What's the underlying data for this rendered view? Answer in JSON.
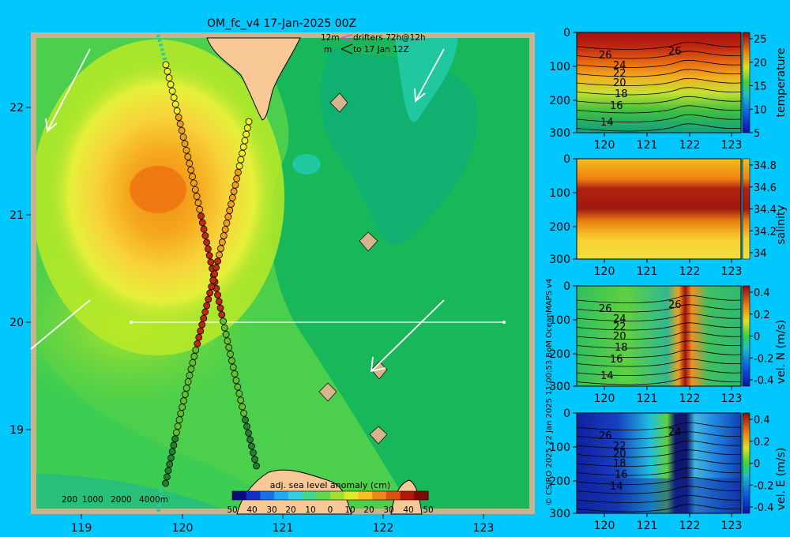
{
  "header": {
    "title": "OM_fc_v4  17-Jan-2025 00Z",
    "drifter_line1_left": "12m",
    "drifter_line1_right": "drifters 72h@12h",
    "drifter_line2_left": "m",
    "drifter_line2_right": "to 17 Jan 12Z"
  },
  "map": {
    "lon_ticks": [
      "119",
      "120",
      "121",
      "122",
      "123"
    ],
    "lat_ticks": [
      "22",
      "21",
      "20",
      "19"
    ],
    "depth_legend": [
      "200",
      "1000",
      "2000",
      "4000m"
    ],
    "colorbar_title": "adj. sea level anomaly (cm)",
    "colorbar_ticks": [
      "50",
      "40",
      "30",
      "20",
      "10",
      "0",
      "10",
      "20",
      "30",
      "40",
      "50"
    ]
  },
  "credit": "© CSIRO 2025   22 Jan 2025 11:00:53 BoM OceanMAPS v4",
  "panels": [
    {
      "label": "temperature",
      "y_ticks": [
        "0",
        "100",
        "200",
        "300"
      ],
      "x_ticks": [
        "120",
        "121",
        "122",
        "123"
      ],
      "cbar_ticks": [
        "25",
        "20",
        "15",
        "10",
        "5"
      ],
      "contour_labels": [
        "26",
        "26",
        "24",
        "22",
        "20",
        "18",
        "16",
        "14"
      ]
    },
    {
      "label": "salinity",
      "y_ticks": [
        "0",
        "100",
        "200",
        "300"
      ],
      "x_ticks": [
        "120",
        "121",
        "122",
        "123"
      ],
      "cbar_ticks": [
        "34.8",
        "34.6",
        "34.4",
        "34.2",
        "34"
      ],
      "contour_labels": []
    },
    {
      "label": "vel. N (m/s)",
      "y_ticks": [
        "0",
        "100",
        "200",
        "300"
      ],
      "x_ticks": [
        "120",
        "121",
        "122",
        "123"
      ],
      "cbar_ticks": [
        "0.4",
        "0.2",
        "0",
        "-0.2",
        "-0.4"
      ],
      "contour_labels": [
        "26",
        "26",
        "24",
        "22",
        "20",
        "18",
        "16",
        "14"
      ]
    },
    {
      "label": "vel. E (m/s)",
      "y_ticks": [
        "0",
        "100",
        "200",
        "300"
      ],
      "x_ticks": [
        "120",
        "121",
        "122",
        "123"
      ],
      "cbar_ticks": [
        "0.4",
        "0.2",
        "0",
        "-0.2",
        "-0.4"
      ],
      "contour_labels": [
        "26",
        "24",
        "22",
        "20",
        "18",
        "16",
        "14"
      ]
    }
  ]
}
